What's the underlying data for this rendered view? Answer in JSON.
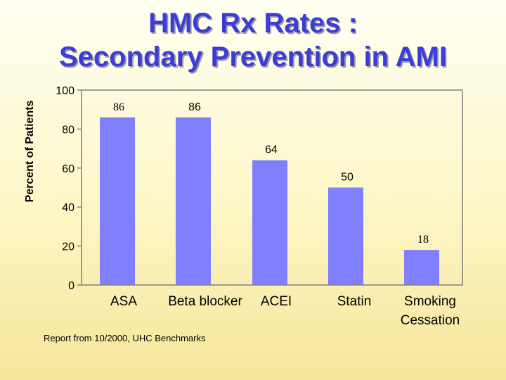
{
  "title": {
    "line1": "HMC Rx Rates :",
    "line2": "Secondary Prevention in AMI"
  },
  "footnote": "Report from 10/2000, UHC Benchmarks",
  "colors": {
    "title": "#3b3dd6",
    "bar": "#8080ff",
    "axis": "#808080"
  },
  "chart_data": {
    "type": "bar",
    "title": "HMC Rx Rates : Secondary Prevention in AMI",
    "ylabel": "Percent of Patients",
    "xlabel": "",
    "ylim": [
      0,
      100
    ],
    "yticks": [
      0,
      20,
      40,
      60,
      80,
      100
    ],
    "grid": false,
    "legend": "none",
    "categories": [
      {
        "label": "ASA",
        "label_lines": [
          "ASA"
        ]
      },
      {
        "label": "Beta blocker",
        "label_lines": [
          "Beta blocker"
        ]
      },
      {
        "label": "ACEI",
        "label_lines": [
          "ACEI"
        ]
      },
      {
        "label": "Statin",
        "label_lines": [
          "Statin"
        ]
      },
      {
        "label": "Smoking Cessation",
        "label_lines": [
          "Smoking",
          "Cessation"
        ]
      }
    ],
    "values": [
      86,
      86,
      64,
      50,
      18
    ]
  }
}
